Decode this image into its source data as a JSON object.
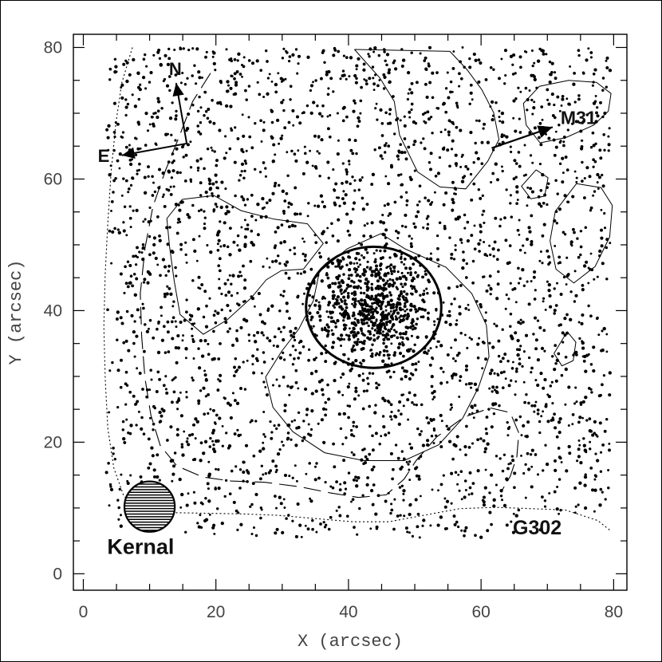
{
  "chart_data": {
    "type": "scatter",
    "xlabel": "X (arcsec)",
    "ylabel": "Y (arcsec)",
    "xlim": [
      -1.5,
      82
    ],
    "ylim": [
      -2.5,
      82
    ],
    "xticks": [
      0,
      20,
      40,
      60,
      80
    ],
    "yticks": [
      0,
      20,
      40,
      60,
      80
    ],
    "xtick_labels": [
      "0",
      "20",
      "40",
      "60",
      "80"
    ],
    "ytick_labels": [
      "0",
      "20",
      "40",
      "60",
      "80"
    ],
    "grid": false,
    "legend": "none",
    "point_color": "#000000",
    "annotations": {
      "north": "N",
      "east": "E",
      "m31": "M31",
      "object": "G302",
      "kernel": "Kernal"
    },
    "compass": {
      "origin": [
        15.6,
        65.4
      ],
      "north_tip": [
        14.0,
        74.6
      ],
      "east_tip": [
        5.8,
        63.6
      ],
      "m31_start": [
        61.6,
        64.7
      ],
      "m31_tip": [
        70.8,
        67.9
      ]
    },
    "kernel_disk": {
      "center": [
        10.0,
        10.2
      ],
      "radius": 3.8
    },
    "central_circle": {
      "center": [
        43.8,
        40.5
      ],
      "radius_x": 10.2,
      "radius_y": 9.2
    },
    "contours": [
      {
        "style": "solid",
        "points": [
          [
            48.5,
            49.4
          ],
          [
            44.9,
            51.7
          ],
          [
            39.8,
            49.4
          ],
          [
            35.6,
            45.9
          ],
          [
            34.7,
            41.5
          ],
          [
            32.5,
            37.2
          ],
          [
            29.9,
            33.8
          ],
          [
            27.5,
            29.9
          ],
          [
            28.6,
            25.3
          ],
          [
            31.6,
            21.6
          ],
          [
            36.4,
            18.4
          ],
          [
            42.3,
            17.2
          ],
          [
            48.4,
            17.2
          ],
          [
            53.6,
            19.6
          ],
          [
            57.2,
            23.6
          ],
          [
            59.6,
            28.3
          ],
          [
            61.2,
            33.0
          ],
          [
            60.8,
            37.8
          ],
          [
            58.6,
            42.6
          ],
          [
            54.7,
            46.6
          ],
          [
            48.5,
            49.4
          ]
        ]
      },
      {
        "style": "solid",
        "points": [
          [
            14.9,
            56.9
          ],
          [
            19.7,
            57.5
          ],
          [
            23.8,
            55.2
          ],
          [
            28.8,
            53.9
          ],
          [
            33.8,
            53.2
          ],
          [
            36.2,
            50.2
          ],
          [
            33.2,
            46.3
          ],
          [
            29.9,
            46.1
          ],
          [
            27.6,
            44.7
          ],
          [
            25.3,
            41.9
          ],
          [
            21.7,
            38.6
          ],
          [
            18.1,
            36.4
          ],
          [
            14.6,
            39.4
          ],
          [
            13.7,
            44.6
          ],
          [
            13.0,
            49.8
          ],
          [
            12.6,
            54.0
          ],
          [
            14.9,
            56.9
          ]
        ]
      },
      {
        "style": "solid",
        "points": [
          [
            40.9,
            79.7
          ],
          [
            44.7,
            75.4
          ],
          [
            46.9,
            71.8
          ],
          [
            47.7,
            66.7
          ],
          [
            50.4,
            61.1
          ],
          [
            53.8,
            58.8
          ],
          [
            57.7,
            58.5
          ],
          [
            61.0,
            62.7
          ],
          [
            62.7,
            66.0
          ],
          [
            61.9,
            70.1
          ],
          [
            60.1,
            73.6
          ],
          [
            57.9,
            76.6
          ],
          [
            55.3,
            79.4
          ],
          [
            40.9,
            79.7
          ]
        ]
      },
      {
        "style": "solid",
        "points": [
          [
            68.9,
            65.5
          ],
          [
            72.8,
            66.3
          ],
          [
            77.0,
            68.2
          ],
          [
            79.2,
            70.3
          ],
          [
            79.6,
            73.0
          ],
          [
            77.4,
            74.7
          ],
          [
            73.2,
            75.0
          ],
          [
            68.8,
            74.1
          ],
          [
            66.4,
            71.5
          ],
          [
            66.8,
            68.2
          ],
          [
            68.9,
            65.5
          ]
        ]
      },
      {
        "style": "solid",
        "points": [
          [
            74.4,
            59.3
          ],
          [
            78.1,
            58.7
          ],
          [
            79.8,
            56.0
          ],
          [
            79.4,
            51.2
          ],
          [
            77.2,
            46.7
          ],
          [
            74.0,
            44.2
          ],
          [
            71.3,
            46.3
          ],
          [
            70.4,
            50.6
          ],
          [
            71.2,
            55.1
          ],
          [
            74.4,
            59.3
          ]
        ]
      },
      {
        "style": "solid",
        "points": [
          [
            68.3,
            61.4
          ],
          [
            70.1,
            60.2
          ],
          [
            69.6,
            57.4
          ],
          [
            67.5,
            57.0
          ],
          [
            66.1,
            58.9
          ],
          [
            68.3,
            61.4
          ]
        ]
      },
      {
        "style": "solid",
        "points": [
          [
            73.0,
            36.8
          ],
          [
            74.3,
            35.2
          ],
          [
            73.9,
            32.4
          ],
          [
            72.2,
            31.6
          ],
          [
            71.0,
            33.5
          ],
          [
            73.0,
            36.8
          ]
        ]
      },
      {
        "style": "dashed",
        "points": [
          [
            19.2,
            76.1
          ],
          [
            16.5,
            71.8
          ],
          [
            14.6,
            66.8
          ],
          [
            12.4,
            61.3
          ],
          [
            10.5,
            55.8
          ],
          [
            9.3,
            49.5
          ],
          [
            8.6,
            42.6
          ],
          [
            8.8,
            36.1
          ],
          [
            9.3,
            29.7
          ],
          [
            10.2,
            24.1
          ],
          [
            11.6,
            19.5
          ],
          [
            14.1,
            16.4
          ],
          [
            18.0,
            14.7
          ],
          [
            22.3,
            14.1
          ],
          [
            27.4,
            13.9
          ],
          [
            32.8,
            13.2
          ],
          [
            37.2,
            12.3
          ],
          [
            41.5,
            11.6
          ],
          [
            45.7,
            12.0
          ],
          [
            48.4,
            14.4
          ],
          [
            50.2,
            17.2
          ],
          [
            53.3,
            20.8
          ],
          [
            57.4,
            23.8
          ],
          [
            61.4,
            25.2
          ],
          [
            64.4,
            24.5
          ],
          [
            65.7,
            21.4
          ],
          [
            65.4,
            17.8
          ],
          [
            64.4,
            14.8
          ],
          [
            63.0,
            12.4
          ]
        ]
      },
      {
        "style": "dotted",
        "points": [
          [
            7.4,
            80.0
          ],
          [
            5.8,
            74.6
          ],
          [
            4.9,
            68.4
          ],
          [
            4.2,
            61.2
          ],
          [
            3.7,
            53.4
          ],
          [
            3.3,
            45.6
          ],
          [
            3.1,
            37.6
          ],
          [
            3.3,
            29.7
          ],
          [
            3.7,
            22.1
          ],
          [
            4.6,
            16.1
          ],
          [
            6.1,
            11.8
          ],
          [
            8.9,
            9.6
          ],
          [
            13.2,
            9.3
          ],
          [
            18.4,
            9.2
          ],
          [
            23.8,
            9.1
          ],
          [
            29.2,
            8.9
          ],
          [
            34.9,
            8.4
          ],
          [
            40.7,
            7.9
          ],
          [
            46.1,
            7.9
          ],
          [
            51.4,
            8.9
          ],
          [
            56.8,
            9.9
          ],
          [
            62.3,
            10.1
          ],
          [
            67.4,
            9.9
          ],
          [
            72.7,
            9.7
          ],
          [
            77.6,
            8.1
          ],
          [
            79.6,
            6.5
          ]
        ]
      }
    ]
  }
}
